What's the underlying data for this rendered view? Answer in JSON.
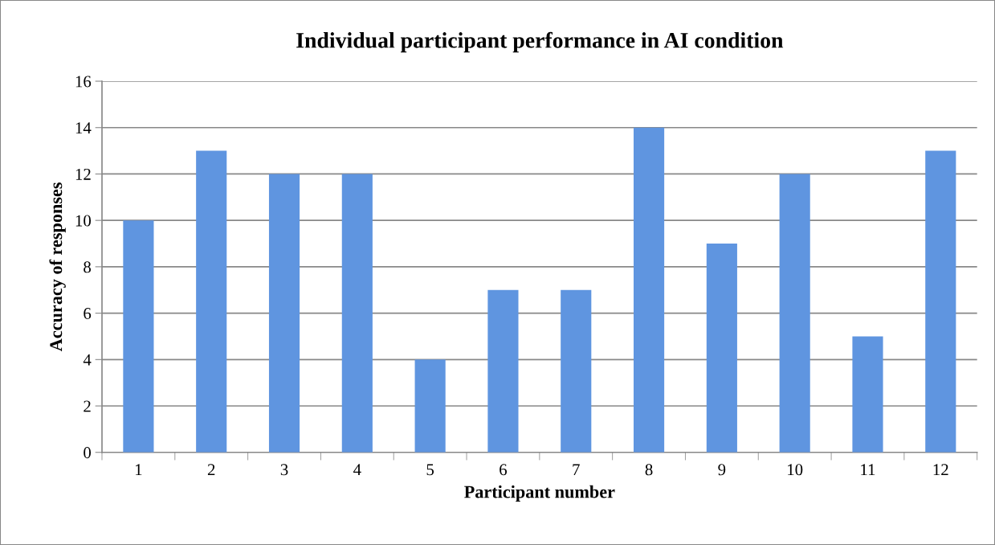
{
  "chart_data": {
    "type": "bar",
    "title": "Individual participant performance in AI condition",
    "xlabel": "Participant number",
    "ylabel": "Accuracy of responses",
    "categories": [
      "1",
      "2",
      "3",
      "4",
      "5",
      "6",
      "7",
      "8",
      "9",
      "10",
      "11",
      "12"
    ],
    "values": [
      10,
      13,
      12,
      12,
      4,
      7,
      7,
      14,
      9,
      12,
      5,
      13
    ],
    "color": "#5f95e0",
    "ylim": [
      0,
      16
    ],
    "yticks": [
      0,
      2,
      4,
      6,
      8,
      10,
      12,
      14,
      16
    ],
    "grid": "y",
    "legend": false
  }
}
